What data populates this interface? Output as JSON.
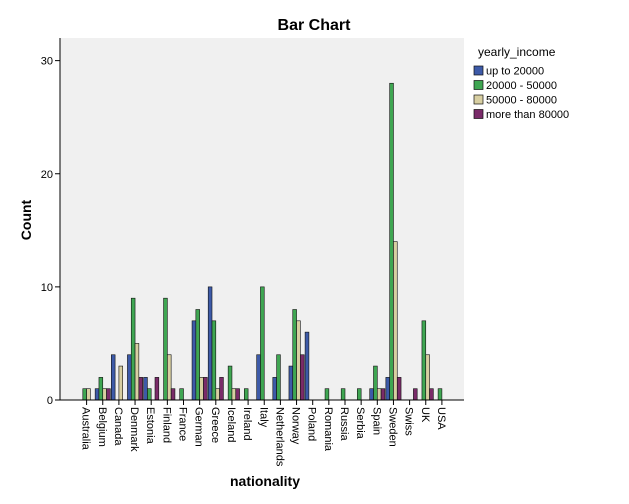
{
  "chart_data": {
    "type": "bar",
    "title": "Bar Chart",
    "xlabel": "nationality",
    "ylabel": "Count",
    "ylim": [
      0,
      32
    ],
    "yticks": [
      0,
      10,
      20,
      30
    ],
    "legend_title": "yearly_income",
    "legend_position": "top-right",
    "categories": [
      "Australia",
      "Belgium",
      "Canada",
      "Denmark",
      "Estonia",
      "Finland",
      "France",
      "German",
      "Greece",
      "Iceland",
      "Ireland",
      "Italy",
      "Netherlands",
      "Norway",
      "Poland",
      "Romania",
      "Russia",
      "Serbia",
      "Spain",
      "Sweden",
      "Swiss",
      "UK",
      "USA"
    ],
    "series": [
      {
        "name": "up to 20000",
        "color": "#3d5aa8",
        "values": [
          0,
          1,
          4,
          4,
          2,
          0,
          0,
          7,
          10,
          0,
          0,
          4,
          2,
          3,
          6,
          0,
          0,
          0,
          1,
          2,
          0,
          0,
          0
        ]
      },
      {
        "name": "20000 - 50000",
        "color": "#3fa652",
        "values": [
          1,
          2,
          0,
          9,
          1,
          9,
          1,
          8,
          7,
          3,
          1,
          10,
          4,
          8,
          0,
          1,
          1,
          1,
          3,
          28,
          0,
          7,
          1
        ]
      },
      {
        "name": "50000 - 80000",
        "color": "#d8cfa2",
        "values": [
          1,
          1,
          3,
          5,
          0,
          4,
          0,
          2,
          1,
          1,
          0,
          0,
          0,
          7,
          0,
          0,
          0,
          0,
          1,
          14,
          0,
          4,
          0
        ]
      },
      {
        "name": "more than 80000",
        "color": "#7a2b69",
        "values": [
          0,
          1,
          0,
          2,
          2,
          1,
          0,
          2,
          2,
          1,
          0,
          0,
          0,
          4,
          0,
          0,
          0,
          0,
          1,
          2,
          1,
          1,
          0
        ]
      }
    ]
  }
}
